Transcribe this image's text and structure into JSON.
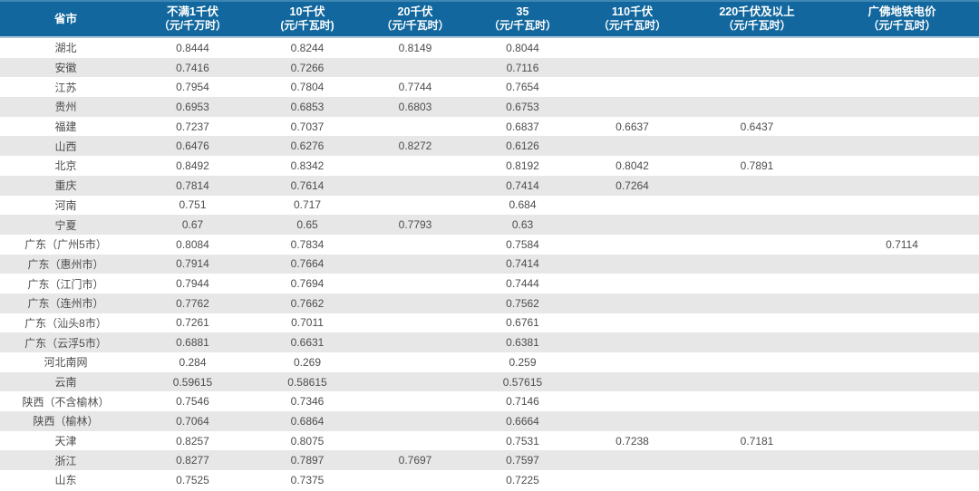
{
  "colors": {
    "header_bg": "#12689e",
    "header_text": "#ffffff",
    "header_top_edge": "#3e87b3",
    "header_bottom_edge": "#a9c6d8",
    "row_bg": "#ffffff",
    "row_alt_bg": "#e7e7e7",
    "body_text": "#4d4d4d"
  },
  "chart_data": {
    "type": "table",
    "title": "",
    "columns": [
      {
        "title": "省市",
        "unit": ""
      },
      {
        "title": "不满1千伏",
        "unit": "（元/千万时）"
      },
      {
        "title": "10千伏",
        "unit": "(元/千瓦时)"
      },
      {
        "title": "20千伏",
        "unit": "（元/千瓦时）"
      },
      {
        "title": "35",
        "unit": "（元/千瓦时）"
      },
      {
        "title": "110千伏",
        "unit": "（元/千瓦时）"
      },
      {
        "title": "220千伏及以上",
        "unit": "（元/千瓦时）"
      },
      {
        "title": "广佛地铁电价",
        "unit": "（元/千瓦时）"
      }
    ],
    "rows": [
      {
        "province": "湖北",
        "values": [
          "0.8444",
          "0.8244",
          "0.8149",
          "0.8044",
          "",
          "",
          ""
        ]
      },
      {
        "province": "安徽",
        "values": [
          "0.7416",
          "0.7266",
          "",
          "0.7116",
          "",
          "",
          ""
        ]
      },
      {
        "province": "江苏",
        "values": [
          "0.7954",
          "0.7804",
          "0.7744",
          "0.7654",
          "",
          "",
          ""
        ]
      },
      {
        "province": "贵州",
        "values": [
          "0.6953",
          "0.6853",
          "0.6803",
          "0.6753",
          "",
          "",
          ""
        ]
      },
      {
        "province": "福建",
        "values": [
          "0.7237",
          "0.7037",
          "",
          "0.6837",
          "0.6637",
          "0.6437",
          ""
        ]
      },
      {
        "province": "山西",
        "values": [
          "0.6476",
          "0.6276",
          "0.8272",
          "0.6126",
          "",
          "",
          ""
        ]
      },
      {
        "province": "北京",
        "values": [
          "0.8492",
          "0.8342",
          "",
          "0.8192",
          "0.8042",
          "0.7891",
          ""
        ]
      },
      {
        "province": "重庆",
        "values": [
          "0.7814",
          "0.7614",
          "",
          "0.7414",
          "0.7264",
          "",
          ""
        ]
      },
      {
        "province": "河南",
        "values": [
          "0.751",
          "0.717",
          "",
          "0.684",
          "",
          "",
          ""
        ]
      },
      {
        "province": "宁夏",
        "values": [
          "0.67",
          "0.65",
          "0.7793",
          "0.63",
          "",
          "",
          ""
        ]
      },
      {
        "province": "广东（广州5市）",
        "values": [
          "0.8084",
          "0.7834",
          "",
          "0.7584",
          "",
          "",
          "0.7114"
        ]
      },
      {
        "province": "广东（惠州市）",
        "values": [
          "0.7914",
          "0.7664",
          "",
          "0.7414",
          "",
          "",
          ""
        ]
      },
      {
        "province": "广东（江门市）",
        "values": [
          "0.7944",
          "0.7694",
          "",
          "0.7444",
          "",
          "",
          ""
        ]
      },
      {
        "province": "广东（连州市）",
        "values": [
          "0.7762",
          "0.7662",
          "",
          "0.7562",
          "",
          "",
          ""
        ]
      },
      {
        "province": "广东（汕头8市）",
        "values": [
          "0.7261",
          "0.7011",
          "",
          "0.6761",
          "",
          "",
          ""
        ]
      },
      {
        "province": "广东（云浮5市）",
        "values": [
          "0.6881",
          "0.6631",
          "",
          "0.6381",
          "",
          "",
          ""
        ]
      },
      {
        "province": "河北南网",
        "values": [
          "0.284",
          "0.269",
          "",
          "0.259",
          "",
          "",
          ""
        ]
      },
      {
        "province": "云南",
        "values": [
          "0.59615",
          "0.58615",
          "",
          "0.57615",
          "",
          "",
          ""
        ]
      },
      {
        "province": "陕西（不含榆林）",
        "values": [
          "0.7546",
          "0.7346",
          "",
          "0.7146",
          "",
          "",
          ""
        ]
      },
      {
        "province": "陕西（榆林）",
        "values": [
          "0.7064",
          "0.6864",
          "",
          "0.6664",
          "",
          "",
          ""
        ]
      },
      {
        "province": "天津",
        "values": [
          "0.8257",
          "0.8075",
          "",
          "0.7531",
          "0.7238",
          "0.7181",
          ""
        ]
      },
      {
        "province": "浙江",
        "values": [
          "0.8277",
          "0.7897",
          "0.7697",
          "0.7597",
          "",
          "",
          ""
        ]
      },
      {
        "province": "山东",
        "values": [
          "0.7525",
          "0.7375",
          "",
          "0.7225",
          "",
          "",
          ""
        ]
      }
    ]
  }
}
